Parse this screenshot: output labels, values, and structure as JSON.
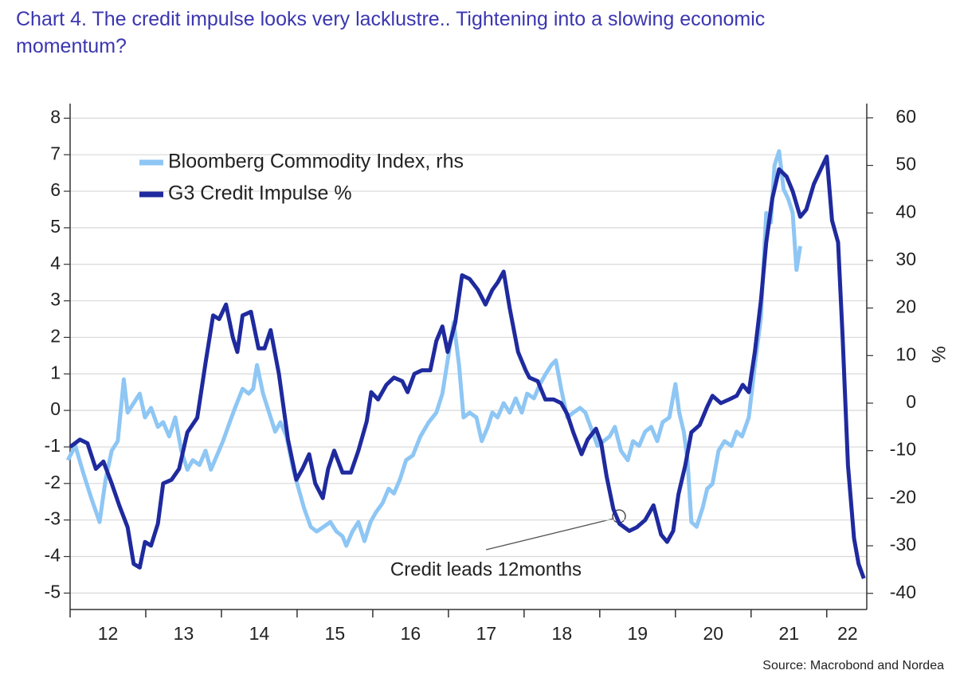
{
  "chart_data": {
    "type": "line",
    "title": [
      "Chart 4. The credit impulse looks very lacklustre.. Tightening into a slowing economic",
      "momentum?"
    ],
    "y2_label": "%",
    "source": "Source: Macrobond and Nordea",
    "annotation": "Credit leads 12months",
    "xlim": [
      11.95,
      22.55
    ],
    "xticks": [
      {
        "value": 12,
        "label": "12"
      },
      {
        "value": 13,
        "label": "13"
      },
      {
        "value": 14,
        "label": "14"
      },
      {
        "value": 15,
        "label": "15"
      },
      {
        "value": 16,
        "label": "16"
      },
      {
        "value": 17,
        "label": "17"
      },
      {
        "value": 18,
        "label": "18"
      },
      {
        "value": 19,
        "label": "19"
      },
      {
        "value": 20,
        "label": "20"
      },
      {
        "value": 21,
        "label": "21"
      },
      {
        "value": 22,
        "label": "22"
      }
    ],
    "ylim": [
      -5.45,
      8.4
    ],
    "yticks": [
      -5,
      -4,
      -3,
      -2,
      -1,
      0,
      1,
      2,
      3,
      4,
      5,
      6,
      7,
      8
    ],
    "y2lim": [
      -43.4,
      63
    ],
    "y2ticks": [
      -40,
      -30,
      -20,
      -10,
      0,
      10,
      20,
      30,
      40,
      50,
      60
    ],
    "grid": true,
    "legend": "upper left",
    "series": [
      {
        "name": "Bloomberg Commodity Index, rhs",
        "color": "#8ec6f4",
        "axis": "y2",
        "x": [
          11.97,
          12.07,
          12.18,
          12.28,
          12.39,
          12.47,
          12.55,
          12.63,
          12.71,
          12.76,
          12.84,
          12.92,
          12.99,
          13.07,
          13.16,
          13.23,
          13.31,
          13.39,
          13.47,
          13.55,
          13.62,
          13.71,
          13.79,
          13.86,
          13.94,
          14.02,
          14.11,
          14.18,
          14.28,
          14.36,
          14.42,
          14.47,
          14.55,
          14.63,
          14.71,
          14.78,
          14.86,
          14.95,
          15.02,
          15.09,
          15.18,
          15.26,
          15.35,
          15.44,
          15.52,
          15.6,
          15.65,
          15.73,
          15.81,
          15.89,
          15.97,
          16.04,
          16.13,
          16.21,
          16.28,
          16.36,
          16.44,
          16.53,
          16.63,
          16.74,
          16.84,
          16.92,
          16.99,
          17.07,
          17.14,
          17.2,
          17.28,
          17.37,
          17.44,
          17.52,
          17.58,
          17.65,
          17.73,
          17.81,
          17.89,
          17.97,
          18.04,
          18.13,
          18.21,
          18.28,
          18.36,
          18.42,
          18.49,
          18.57,
          18.65,
          18.74,
          18.81,
          18.88,
          18.97,
          19.05,
          19.13,
          19.2,
          19.28,
          19.37,
          19.44,
          19.52,
          19.6,
          19.68,
          19.76,
          19.83,
          19.92,
          20.0,
          20.05,
          20.11,
          20.16,
          20.21,
          20.28,
          20.36,
          20.42,
          20.49,
          20.57,
          20.65,
          20.74,
          20.81,
          20.88,
          20.97,
          21.05,
          21.13,
          21.2,
          21.26,
          21.31,
          21.37,
          21.43,
          21.49,
          21.55,
          21.6,
          21.65
        ],
        "values": [
          -12,
          -9,
          -15,
          -20,
          -25,
          -16,
          -10,
          -8,
          5,
          -2,
          0,
          2,
          -3,
          -1,
          -5,
          -4,
          -7,
          -3,
          -10,
          -14,
          -12,
          -13,
          -10,
          -14,
          -11,
          -8,
          -4,
          -1,
          3,
          2,
          3,
          8,
          2,
          -2,
          -6,
          -4,
          -7,
          -14,
          -18,
          -22,
          -26,
          -27,
          -26,
          -25,
          -27,
          -28,
          -30,
          -27,
          -25,
          -29,
          -25,
          -23,
          -21,
          -18,
          -19,
          -16,
          -12,
          -11,
          -7,
          -4,
          -2,
          2,
          9,
          17,
          8,
          -3,
          -2,
          -3,
          -8,
          -5,
          -2,
          -3,
          0,
          -2,
          1,
          -2,
          2,
          1,
          4,
          6,
          8,
          9,
          3,
          -3,
          -2,
          -1,
          -2,
          -5,
          -9,
          -8,
          -7,
          -5,
          -10,
          -12,
          -8,
          -9,
          -6,
          -5,
          -8,
          -4,
          -3,
          4,
          -2,
          -6,
          -12,
          -25,
          -26,
          -22,
          -18,
          -17,
          -10,
          -8,
          -9,
          -6,
          -7,
          -3,
          8,
          18,
          40,
          38,
          50,
          53,
          45,
          43,
          40,
          28,
          33
        ]
      },
      {
        "name": "G3 Credit Impulse %",
        "color": "#1f2a9e",
        "axis": "y",
        "x": [
          12.0,
          12.13,
          12.23,
          12.34,
          12.44,
          12.55,
          12.65,
          12.76,
          12.84,
          12.92,
          12.99,
          13.07,
          13.16,
          13.23,
          13.34,
          13.44,
          13.55,
          13.68,
          13.79,
          13.89,
          13.97,
          14.06,
          14.15,
          14.21,
          14.28,
          14.39,
          14.49,
          14.57,
          14.65,
          14.76,
          14.88,
          14.99,
          15.07,
          15.16,
          15.24,
          15.34,
          15.41,
          15.49,
          15.6,
          15.71,
          15.81,
          15.92,
          15.98,
          16.07,
          16.18,
          16.28,
          16.39,
          16.46,
          16.55,
          16.65,
          16.76,
          16.84,
          16.92,
          16.99,
          17.09,
          17.18,
          17.28,
          17.39,
          17.49,
          17.58,
          17.65,
          17.73,
          17.81,
          17.92,
          18.02,
          18.07,
          18.18,
          18.28,
          18.39,
          18.49,
          18.57,
          18.65,
          18.76,
          18.84,
          18.95,
          19.02,
          19.09,
          19.18,
          19.26,
          19.39,
          19.49,
          19.6,
          19.71,
          19.81,
          19.89,
          19.97,
          20.04,
          20.13,
          20.21,
          20.32,
          20.42,
          20.49,
          20.6,
          20.71,
          20.81,
          20.89,
          20.97,
          21.05,
          21.13,
          21.2,
          21.28,
          21.37,
          21.47,
          21.55,
          21.65,
          21.73,
          21.83,
          21.92,
          22.0,
          22.07,
          22.15,
          22.21,
          22.28,
          22.36,
          22.42,
          22.49
        ],
        "values": [
          -1.0,
          -0.8,
          -0.9,
          -1.6,
          -1.4,
          -2.0,
          -2.6,
          -3.2,
          -4.2,
          -4.3,
          -3.6,
          -3.7,
          -3.1,
          -2.0,
          -1.9,
          -1.6,
          -0.6,
          -0.2,
          1.3,
          2.6,
          2.5,
          2.9,
          2.0,
          1.6,
          2.6,
          2.7,
          1.7,
          1.7,
          2.2,
          1.0,
          -0.8,
          -1.9,
          -1.6,
          -1.2,
          -2.0,
          -2.4,
          -1.6,
          -1.1,
          -1.7,
          -1.7,
          -1.1,
          -0.3,
          0.5,
          0.3,
          0.7,
          0.9,
          0.8,
          0.5,
          1.0,
          1.1,
          1.1,
          1.9,
          2.3,
          1.6,
          2.4,
          3.7,
          3.6,
          3.3,
          2.9,
          3.3,
          3.5,
          3.8,
          2.8,
          1.6,
          1.1,
          0.9,
          0.8,
          0.3,
          0.3,
          0.2,
          -0.1,
          -0.6,
          -1.2,
          -0.8,
          -0.5,
          -0.9,
          -1.8,
          -2.7,
          -3.1,
          -3.3,
          -3.2,
          -3.0,
          -2.6,
          -3.4,
          -3.6,
          -3.3,
          -2.3,
          -1.5,
          -0.6,
          -0.4,
          0.1,
          0.4,
          0.2,
          0.3,
          0.4,
          0.7,
          0.5,
          1.6,
          3.0,
          4.6,
          5.8,
          6.6,
          6.4,
          6.0,
          5.3,
          5.5,
          6.2,
          6.6,
          6.95,
          5.2,
          4.6,
          2.0,
          -1.5,
          -3.5,
          -4.2,
          -4.6
        ]
      }
    ]
  }
}
